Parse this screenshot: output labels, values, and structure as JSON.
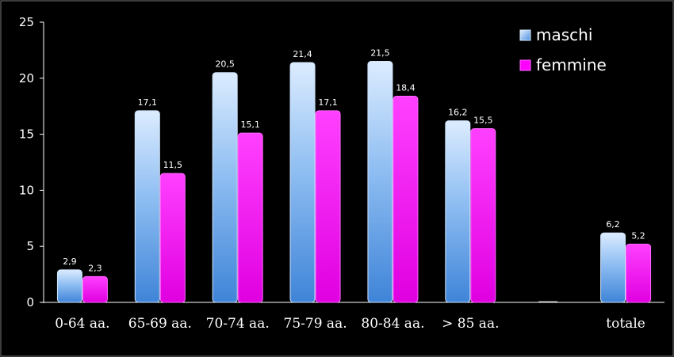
{
  "chart_data": {
    "type": "bar",
    "title": "",
    "xlabel": "",
    "ylabel": "",
    "ylim": [
      0,
      25
    ],
    "yticks": [
      0,
      5,
      10,
      15,
      20,
      25
    ],
    "grid": false,
    "legend_position": "top-right",
    "categories": [
      "0-64 aa.",
      "65-69 aa.",
      "70-74 aa.",
      "75-79 aa.",
      "80-84 aa.",
      "> 85 aa.",
      "",
      "totale"
    ],
    "series": [
      {
        "name": "maschi",
        "color": "#a9cff5",
        "values": [
          2.9,
          17.1,
          20.5,
          21.4,
          21.5,
          16.2,
          0,
          6.2
        ],
        "labels": [
          "2,9",
          "17,1",
          "20,5",
          "21,4",
          "21,5",
          "16,2",
          "",
          "6,2"
        ]
      },
      {
        "name": "femmine",
        "color": "#ff00ff",
        "values": [
          2.3,
          11.5,
          15.1,
          17.1,
          18.4,
          15.5,
          0,
          5.2
        ],
        "labels": [
          "2,3",
          "11,5",
          "15,1",
          "17,1",
          "18,4",
          "15,5",
          "",
          "5,2"
        ]
      }
    ]
  }
}
